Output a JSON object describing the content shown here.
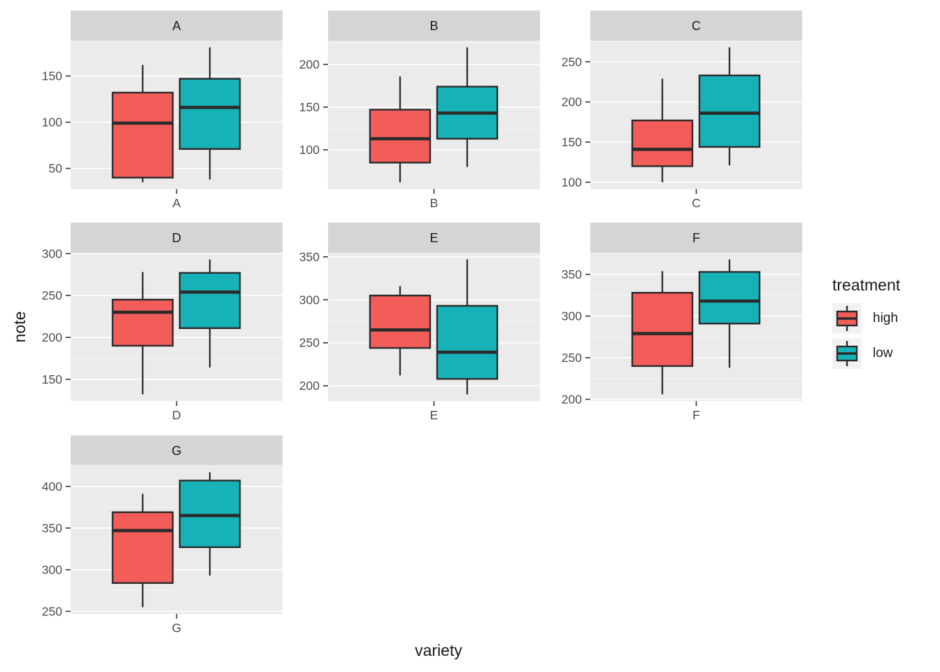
{
  "figure": {
    "x_axis_title": "variety",
    "y_axis_title": "note",
    "background": "#FFFFFF",
    "panel_bg": "#EBEBEB",
    "strip_bg": "#D5D5D5",
    "grid_major_color": "#FFFFFF",
    "grid_minor_color": "#F6F6F6",
    "stroke_color": "#2B2B2B",
    "tick_label_color": "#4D4D4D",
    "strip_label_color": "#1A1A1A"
  },
  "legend": {
    "title": "treatment",
    "items": [
      {
        "label": "high",
        "color": "#F25C59"
      },
      {
        "label": "low",
        "color": "#17B2B8"
      }
    ]
  },
  "chart_data": {
    "type": "boxplot",
    "facet_variable": "variety",
    "value_variable": "note",
    "group_variable": "treatment",
    "groups": [
      "high",
      "low"
    ],
    "group_colors": {
      "high": "#F25C59",
      "low": "#17B2B8"
    },
    "grid": true,
    "legend_position": "right",
    "facets": [
      {
        "label": "A",
        "ylim": [
          27.7,
          188.3
        ],
        "ticks": [
          50,
          100,
          150
        ],
        "boxes": [
          {
            "group": "high",
            "whislo": 35,
            "q1": 40,
            "med": 99,
            "q3": 132,
            "whishi": 162
          },
          {
            "group": "low",
            "whislo": 38,
            "q1": 71,
            "med": 116,
            "q3": 147,
            "whishi": 181
          }
        ]
      },
      {
        "label": "B",
        "ylim": [
          54.1,
          227.9
        ],
        "ticks": [
          100,
          150,
          200
        ],
        "boxes": [
          {
            "group": "high",
            "whislo": 62,
            "q1": 85,
            "med": 113,
            "q3": 147,
            "whishi": 186
          },
          {
            "group": "low",
            "whislo": 80,
            "q1": 113,
            "med": 143,
            "q3": 174,
            "whishi": 220
          }
        ]
      },
      {
        "label": "C",
        "ylim": [
          91.6,
          276.4
        ],
        "ticks": [
          100,
          150,
          200,
          250
        ],
        "boxes": [
          {
            "group": "high",
            "whislo": 100,
            "q1": 120,
            "med": 141,
            "q3": 177,
            "whishi": 229
          },
          {
            "group": "low",
            "whislo": 121,
            "q1": 144,
            "med": 186,
            "q3": 233,
            "whishi": 268
          }
        ]
      },
      {
        "label": "D",
        "ylim": [
          123.9,
          301.1
        ],
        "ticks": [
          150,
          200,
          250,
          300
        ],
        "boxes": [
          {
            "group": "high",
            "whislo": 132,
            "q1": 190,
            "med": 230,
            "q3": 245,
            "whishi": 278
          },
          {
            "group": "low",
            "whislo": 164,
            "q1": 211,
            "med": 254,
            "q3": 277,
            "whishi": 293
          }
        ]
      },
      {
        "label": "E",
        "ylim": [
          182.2,
          354.8
        ],
        "ticks": [
          200,
          250,
          300,
          350
        ],
        "boxes": [
          {
            "group": "high",
            "whislo": 212,
            "q1": 244,
            "med": 265,
            "q3": 305,
            "whishi": 316
          },
          {
            "group": "low",
            "whislo": 190,
            "q1": 208,
            "med": 239,
            "q3": 293,
            "whishi": 347
          }
        ]
      },
      {
        "label": "F",
        "ylim": [
          197.9,
          376.1
        ],
        "ticks": [
          200,
          250,
          300,
          350
        ],
        "boxes": [
          {
            "group": "high",
            "whislo": 206,
            "q1": 240,
            "med": 279,
            "q3": 328,
            "whishi": 354
          },
          {
            "group": "low",
            "whislo": 238,
            "q1": 291,
            "med": 318,
            "q3": 353,
            "whishi": 368
          }
        ]
      },
      {
        "label": "G",
        "ylim": [
          246.9,
          425.1
        ],
        "ticks": [
          250,
          300,
          350,
          400
        ],
        "boxes": [
          {
            "group": "high",
            "whislo": 255,
            "q1": 284,
            "med": 347,
            "q3": 369,
            "whishi": 391
          },
          {
            "group": "low",
            "whislo": 293,
            "q1": 327,
            "med": 365,
            "q3": 407,
            "whishi": 417
          }
        ]
      }
    ]
  }
}
